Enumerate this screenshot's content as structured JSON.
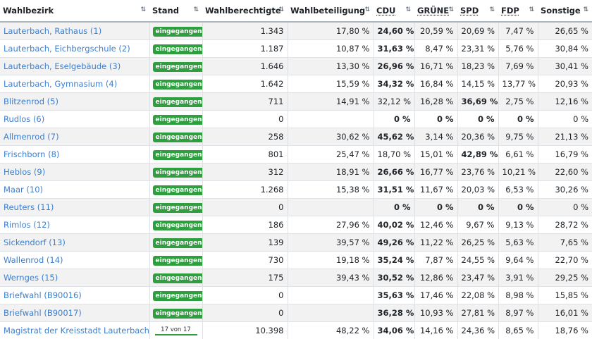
{
  "headers": [
    "Wahlbezirk",
    "Stand",
    "Wahlberechtigte",
    "Wahlbeteiligung",
    "CDU",
    "GRÜNE",
    "SPD",
    "FDP",
    "Sonstige"
  ],
  "rows": [
    {
      "name": "Lauterbach, Rathaus (1)",
      "status": "eingegangen",
      "eligible": "1.343",
      "turnout": "17,80 %",
      "cdu": "24,60 %",
      "gruene": "20,59 %",
      "spd": "20,69 %",
      "fdp": "7,47 %",
      "other": "26,65 %",
      "bold": "cdu"
    },
    {
      "name": "Lauterbach, Eichbergschule (2)",
      "status": "eingegangen",
      "eligible": "1.187",
      "turnout": "10,87 %",
      "cdu": "31,63 %",
      "gruene": "8,47 %",
      "spd": "23,31 %",
      "fdp": "5,76 %",
      "other": "30,84 %",
      "bold": "cdu"
    },
    {
      "name": "Lauterbach, Eselgebäude (3)",
      "status": "eingegangen",
      "eligible": "1.646",
      "turnout": "13,30 %",
      "cdu": "26,96 %",
      "gruene": "16,71 %",
      "spd": "18,23 %",
      "fdp": "7,69 %",
      "other": "30,41 %",
      "bold": "cdu"
    },
    {
      "name": "Lauterbach, Gymnasium (4)",
      "status": "eingegangen",
      "eligible": "1.642",
      "turnout": "15,59 %",
      "cdu": "34,32 %",
      "gruene": "16,84 %",
      "spd": "14,15 %",
      "fdp": "13,77 %",
      "other": "20,93 %",
      "bold": "cdu"
    },
    {
      "name": "Blitzenrod (5)",
      "status": "eingegangen",
      "eligible": "711",
      "turnout": "14,91 %",
      "cdu": "32,12 %",
      "gruene": "16,28 %",
      "spd": "36,69 %",
      "fdp": "2,75 %",
      "other": "12,16 %",
      "bold": "spd"
    },
    {
      "name": "Rudlos (6)",
      "status": "eingegangen",
      "eligible": "0",
      "turnout": "",
      "cdu": "0 %",
      "gruene": "0 %",
      "spd": "0 %",
      "fdp": "0 %",
      "other": "0 %",
      "bold": "zero"
    },
    {
      "name": "Allmenrod (7)",
      "status": "eingegangen",
      "eligible": "258",
      "turnout": "30,62 %",
      "cdu": "45,62 %",
      "gruene": "3,14 %",
      "spd": "20,36 %",
      "fdp": "9,75 %",
      "other": "21,13 %",
      "bold": "cdu"
    },
    {
      "name": "Frischborn (8)",
      "status": "eingegangen",
      "eligible": "801",
      "turnout": "25,47 %",
      "cdu": "18,70 %",
      "gruene": "15,01 %",
      "spd": "42,89 %",
      "fdp": "6,61 %",
      "other": "16,79 %",
      "bold": "spd"
    },
    {
      "name": "Heblos (9)",
      "status": "eingegangen",
      "eligible": "312",
      "turnout": "18,91 %",
      "cdu": "26,66 %",
      "gruene": "16,77 %",
      "spd": "23,76 %",
      "fdp": "10,21 %",
      "other": "22,60 %",
      "bold": "cdu"
    },
    {
      "name": "Maar (10)",
      "status": "eingegangen",
      "eligible": "1.268",
      "turnout": "15,38 %",
      "cdu": "31,51 %",
      "gruene": "11,67 %",
      "spd": "20,03 %",
      "fdp": "6,53 %",
      "other": "30,26 %",
      "bold": "cdu"
    },
    {
      "name": "Reuters (11)",
      "status": "eingegangen",
      "eligible": "0",
      "turnout": "",
      "cdu": "0 %",
      "gruene": "0 %",
      "spd": "0 %",
      "fdp": "0 %",
      "other": "0 %",
      "bold": "zero"
    },
    {
      "name": "Rimlos (12)",
      "status": "eingegangen",
      "eligible": "186",
      "turnout": "27,96 %",
      "cdu": "40,02 %",
      "gruene": "12,46 %",
      "spd": "9,67 %",
      "fdp": "9,13 %",
      "other": "28,72 %",
      "bold": "cdu"
    },
    {
      "name": "Sickendorf (13)",
      "status": "eingegangen",
      "eligible": "139",
      "turnout": "39,57 %",
      "cdu": "49,26 %",
      "gruene": "11,22 %",
      "spd": "26,25 %",
      "fdp": "5,63 %",
      "other": "7,65 %",
      "bold": "cdu"
    },
    {
      "name": "Wallenrod (14)",
      "status": "eingegangen",
      "eligible": "730",
      "turnout": "19,18 %",
      "cdu": "35,24 %",
      "gruene": "7,87 %",
      "spd": "24,55 %",
      "fdp": "9,64 %",
      "other": "22,70 %",
      "bold": "cdu"
    },
    {
      "name": "Wernges (15)",
      "status": "eingegangen",
      "eligible": "175",
      "turnout": "39,43 %",
      "cdu": "30,52 %",
      "gruene": "12,86 %",
      "spd": "23,47 %",
      "fdp": "3,91 %",
      "other": "29,25 %",
      "bold": "cdu"
    },
    {
      "name": "Briefwahl (B90016)",
      "status": "eingegangen",
      "eligible": "0",
      "turnout": "",
      "cdu": "35,63 %",
      "gruene": "17,46 %",
      "spd": "22,08 %",
      "fdp": "8,98 %",
      "other": "15,85 %",
      "bold": "cdu"
    },
    {
      "name": "Briefwahl (B90017)",
      "status": "eingegangen",
      "eligible": "0",
      "turnout": "",
      "cdu": "36,28 %",
      "gruene": "10,93 %",
      "spd": "27,81 %",
      "fdp": "8,97 %",
      "other": "16,01 %",
      "bold": "cdu"
    },
    {
      "name": "Magistrat der Kreisstadt Lauterbach",
      "status_text": "17 von 17",
      "progress": 1.0,
      "eligible": "10.398",
      "turnout": "48,22 %",
      "cdu": "34,06 %",
      "gruene": "14,16 %",
      "spd": "24,36 %",
      "fdp": "8,65 %",
      "other": "18,76 %",
      "bold": "cdu"
    }
  ],
  "colors": {
    "link": "#3c7fd1",
    "badge": "#2e9e3f",
    "stripe": "#f2f2f2"
  },
  "icons": {
    "sort": "sort-arrows-icon"
  }
}
